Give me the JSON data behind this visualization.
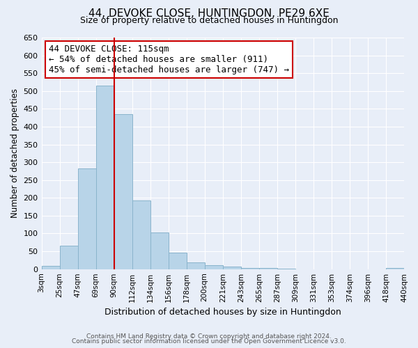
{
  "title": "44, DEVOKE CLOSE, HUNTINGDON, PE29 6XE",
  "subtitle": "Size of property relative to detached houses in Huntingdon",
  "xlabel": "Distribution of detached houses by size in Huntingdon",
  "ylabel": "Number of detached properties",
  "bar_labels": [
    "3sqm",
    "25sqm",
    "47sqm",
    "69sqm",
    "90sqm",
    "112sqm",
    "134sqm",
    "156sqm",
    "178sqm",
    "200sqm",
    "221sqm",
    "243sqm",
    "265sqm",
    "287sqm",
    "309sqm",
    "331sqm",
    "353sqm",
    "374sqm",
    "396sqm",
    "418sqm",
    "440sqm"
  ],
  "bar_heights": [
    10,
    65,
    283,
    515,
    435,
    192,
    102,
    47,
    19,
    12,
    7,
    4,
    3,
    2,
    0,
    0,
    0,
    0,
    0,
    3
  ],
  "bar_color": "#b8d4e8",
  "bar_edge_color": "#8ab4cc",
  "property_line_x": 4,
  "property_line_color": "#cc0000",
  "ylim": [
    0,
    650
  ],
  "yticks": [
    0,
    50,
    100,
    150,
    200,
    250,
    300,
    350,
    400,
    450,
    500,
    550,
    600,
    650
  ],
  "annotation_title": "44 DEVOKE CLOSE: 115sqm",
  "annotation_line1": "← 54% of detached houses are smaller (911)",
  "annotation_line2": "45% of semi-detached houses are larger (747) →",
  "footnote1": "Contains HM Land Registry data © Crown copyright and database right 2024.",
  "footnote2": "Contains public sector information licensed under the Open Government Licence v3.0.",
  "bg_color": "#e8eef8",
  "plot_bg_color": "#e8eef8",
  "grid_color": "#ffffff"
}
